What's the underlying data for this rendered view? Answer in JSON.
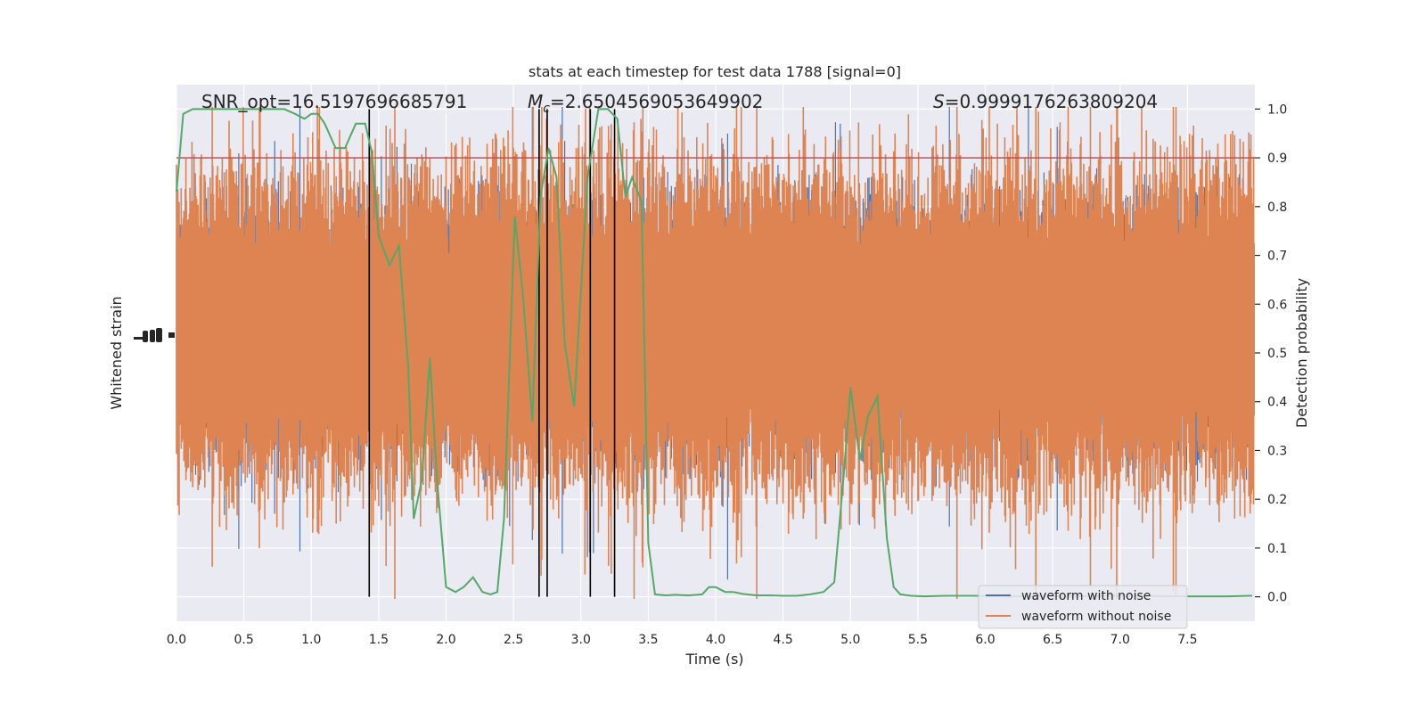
{
  "chart_data": {
    "type": "line",
    "title": "stats at each timestep for test data 1788 [signal=0]",
    "xlabel": "Time (s)",
    "ylabel_left": "Whitened strain",
    "ylabel_right": "Detection probability",
    "xlim": [
      0,
      8.0
    ],
    "ylim_right": [
      -0.05,
      1.05
    ],
    "x_ticks": [
      "0.0",
      "0.5",
      "1.0",
      "1.5",
      "2.0",
      "2.5",
      "3.0",
      "3.5",
      "4.0",
      "4.5",
      "5.0",
      "5.5",
      "6.0",
      "6.5",
      "7.0",
      "7.5"
    ],
    "x_tick_values": [
      0,
      0.5,
      1,
      1.5,
      2,
      2.5,
      3,
      3.5,
      4,
      4.5,
      5,
      5.5,
      6,
      6.5,
      7,
      7.5
    ],
    "y_ticks_right": [
      "0.0",
      "0.1",
      "0.2",
      "0.3",
      "0.4",
      "0.5",
      "0.6",
      "0.7",
      "0.8",
      "0.9",
      "1.0"
    ],
    "y_tick_values_right": [
      0,
      0.1,
      0.2,
      0.3,
      0.4,
      0.5,
      0.6,
      0.7,
      0.8,
      0.9,
      1.0
    ],
    "grid": true,
    "legend_position": "lower-right",
    "annotations": {
      "snr": "SNR_opt=16.5197696685791",
      "mc_symbol": "M",
      "mc_sub": "c",
      "mc_value": "=2.6504569053649902",
      "s_symbol": "S",
      "s_value": "=0.9999176263809204"
    },
    "threshold": 0.9,
    "vertical_lines_x": [
      1.43,
      2.69,
      2.75,
      3.07,
      3.25
    ],
    "series": [
      {
        "name": "waveform with noise",
        "color": "#4c72b0",
        "x": [],
        "y": []
      },
      {
        "name": "waveform without noise",
        "color": "#dd8452",
        "x": [],
        "y": []
      },
      {
        "name": "",
        "color": "#55a868",
        "x": [
          0.0,
          0.05,
          0.12,
          0.2,
          0.3,
          0.5,
          0.8,
          0.88,
          0.95,
          1.0,
          1.05,
          1.1,
          1.18,
          1.25,
          1.33,
          1.4,
          1.45,
          1.5,
          1.58,
          1.65,
          1.72,
          1.76,
          1.82,
          1.88,
          1.93,
          2.0,
          2.07,
          2.13,
          2.2,
          2.27,
          2.33,
          2.38,
          2.43,
          2.51,
          2.57,
          2.64,
          2.7,
          2.76,
          2.82,
          2.88,
          2.95,
          3.05,
          3.13,
          3.2,
          3.27,
          3.33,
          3.38,
          3.45,
          3.5,
          3.55,
          3.63,
          3.7,
          3.8,
          3.9,
          3.95,
          4.0,
          4.07,
          4.13,
          4.2,
          4.3,
          4.4,
          4.5,
          4.6,
          4.7,
          4.8,
          4.88,
          4.95,
          5.0,
          5.07,
          5.13,
          5.2,
          5.27,
          5.32,
          5.37,
          5.45,
          5.55,
          5.7,
          5.9,
          6.2,
          6.6,
          7.0,
          7.4,
          7.8,
          7.98
        ],
        "y": [
          0.83,
          0.99,
          1.0,
          1.0,
          1.0,
          1.0,
          1.0,
          0.99,
          0.98,
          0.99,
          0.99,
          0.97,
          0.92,
          0.92,
          0.97,
          0.97,
          0.91,
          0.74,
          0.68,
          0.72,
          0.47,
          0.16,
          0.24,
          0.49,
          0.25,
          0.02,
          0.01,
          0.02,
          0.04,
          0.01,
          0.005,
          0.01,
          0.16,
          0.78,
          0.62,
          0.36,
          0.82,
          0.92,
          0.86,
          0.52,
          0.39,
          0.86,
          1.0,
          1.0,
          0.98,
          0.82,
          0.86,
          0.81,
          0.11,
          0.005,
          0.003,
          0.004,
          0.003,
          0.005,
          0.02,
          0.02,
          0.01,
          0.01,
          0.006,
          0.003,
          0.003,
          0.002,
          0.002,
          0.005,
          0.01,
          0.03,
          0.25,
          0.43,
          0.28,
          0.37,
          0.41,
          0.12,
          0.02,
          0.005,
          0.002,
          0.001,
          0.002,
          0.002,
          0.001,
          0.001,
          0.002,
          0.001,
          0.001,
          0.002
        ]
      }
    ]
  }
}
